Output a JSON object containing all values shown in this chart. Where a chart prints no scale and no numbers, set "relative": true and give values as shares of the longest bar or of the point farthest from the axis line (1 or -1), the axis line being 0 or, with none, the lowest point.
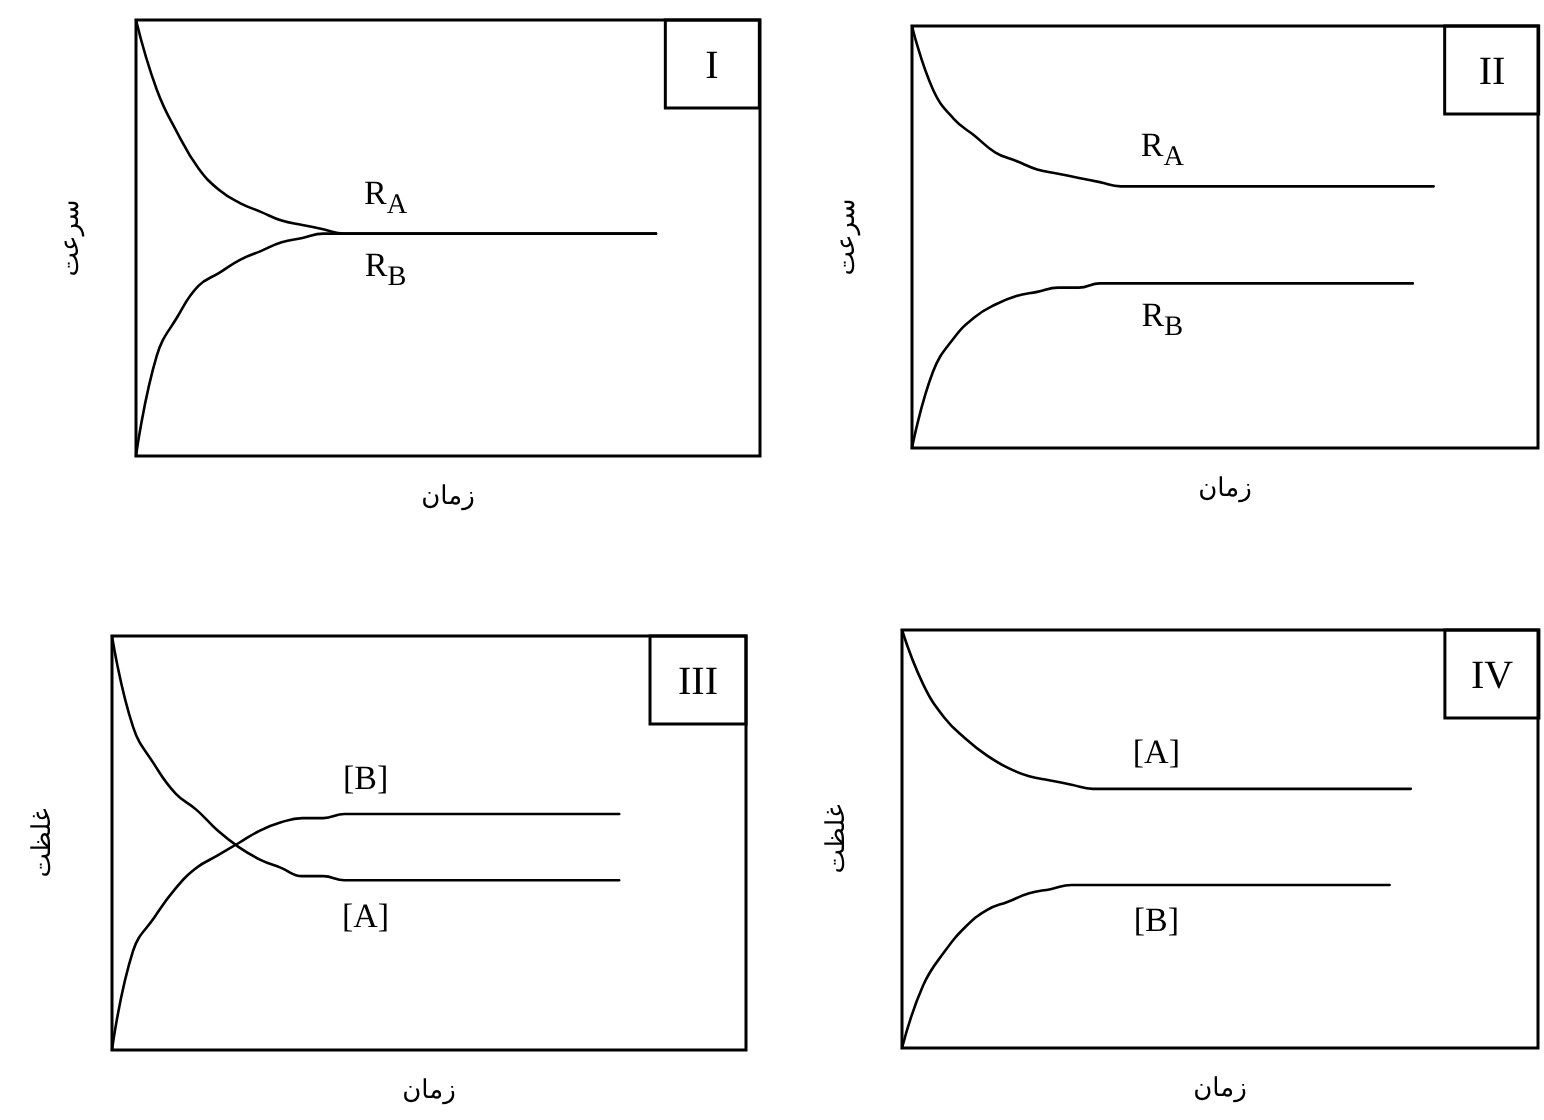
{
  "chart_data": [
    {
      "type": "line",
      "title": "I",
      "xlabel": "زمان",
      "ylabel": "سرعت",
      "relative": true,
      "marker": "none",
      "line_style": "solid",
      "categories": [
        null,
        null,
        null,
        null,
        null,
        null,
        null,
        null,
        null,
        null,
        null,
        null,
        null,
        null,
        null,
        null,
        null,
        null,
        null,
        null,
        null,
        null,
        null,
        null,
        null,
        null,
        null,
        null,
        null,
        null,
        null
      ],
      "series": [
        {
          "name": "R$_{A}$",
          "color": "#000000",
          "values": [
            1,
            0.84,
            0.74,
            0.66,
            0.61,
            0.58,
            0.56,
            0.54,
            0.53,
            0.52,
            0.51,
            0.51,
            0.51,
            0.51,
            0.51,
            0.51,
            0.51,
            0.51,
            0.51,
            0.51,
            0.51,
            0.51,
            0.51,
            0.51,
            0.51,
            0.51,
            null,
            null,
            null,
            null,
            null
          ]
        },
        {
          "name": "R$_{B}$",
          "color": "#000000",
          "values": [
            0,
            0.23,
            0.32,
            0.39,
            0.42,
            0.45,
            0.47,
            0.49,
            0.5,
            0.51,
            0.51,
            0.51,
            0.51,
            0.51,
            0.51,
            0.51,
            0.51,
            0.51,
            0.51,
            0.51,
            0.51,
            0.51,
            0.51,
            0.51,
            0.51,
            0.51,
            null,
            null,
            null,
            null,
            null
          ]
        }
      ]
    },
    {
      "type": "line",
      "title": "II",
      "xlabel": "زمان",
      "ylabel": "سرعت",
      "relative": true,
      "marker": "none",
      "line_style": "solid",
      "categories": [
        null,
        null,
        null,
        null,
        null,
        null,
        null,
        null,
        null,
        null,
        null,
        null,
        null,
        null,
        null,
        null,
        null,
        null,
        null,
        null,
        null,
        null,
        null,
        null,
        null,
        null,
        null,
        null,
        null,
        null,
        null
      ],
      "series": [
        {
          "name": "R$_{A}$",
          "color": "#000000",
          "values": [
            1,
            0.85,
            0.78,
            0.74,
            0.7,
            0.68,
            0.66,
            0.65,
            0.64,
            0.63,
            0.62,
            0.62,
            0.62,
            0.62,
            0.62,
            0.62,
            0.62,
            0.62,
            0.62,
            0.62,
            0.62,
            0.62,
            0.62,
            0.62,
            0.62,
            0.62,
            null,
            null,
            null,
            null,
            null
          ]
        },
        {
          "name": "R$_{B}$",
          "color": "#000000",
          "values": [
            0,
            0.18,
            0.26,
            0.31,
            0.34,
            0.36,
            0.37,
            0.38,
            0.38,
            0.39,
            0.39,
            0.39,
            0.39,
            0.39,
            0.39,
            0.39,
            0.39,
            0.39,
            0.39,
            0.39,
            0.39,
            0.39,
            0.39,
            0.39,
            0.39,
            null,
            null,
            null,
            null,
            null,
            null
          ]
        }
      ]
    },
    {
      "type": "line",
      "title": "III",
      "xlabel": "زمان",
      "ylabel": "غلظت",
      "relative": true,
      "marker": "none",
      "line_style": "solid",
      "categories": [
        null,
        null,
        null,
        null,
        null,
        null,
        null,
        null,
        null,
        null,
        null,
        null,
        null,
        null,
        null,
        null,
        null,
        null,
        null,
        null,
        null,
        null,
        null,
        null,
        null,
        null,
        null,
        null,
        null,
        null,
        null
      ],
      "series": [
        {
          "name": "[B]",
          "color": "#000000",
          "values": [
            0,
            0.24,
            0.32,
            0.39,
            0.44,
            0.47,
            0.5,
            0.53,
            0.55,
            0.56,
            0.56,
            0.57,
            0.57,
            0.57,
            0.57,
            0.57,
            0.57,
            0.57,
            0.57,
            0.57,
            0.57,
            0.57,
            0.57,
            0.57,
            0.57,
            null,
            null,
            null,
            null,
            null,
            null
          ]
        },
        {
          "name": "[A]",
          "color": "#000000",
          "values": [
            1,
            0.78,
            0.69,
            0.62,
            0.58,
            0.53,
            0.49,
            0.46,
            0.44,
            0.42,
            0.42,
            0.41,
            0.41,
            0.41,
            0.41,
            0.41,
            0.41,
            0.41,
            0.41,
            0.41,
            0.41,
            0.41,
            0.41,
            0.41,
            0.41,
            null,
            null,
            null,
            null,
            null,
            null
          ]
        }
      ]
    },
    {
      "type": "line",
      "title": "IV",
      "xlabel": "زمان",
      "ylabel": "غلظت",
      "relative": true,
      "marker": "none",
      "line_style": "solid",
      "categories": [
        null,
        null,
        null,
        null,
        null,
        null,
        null,
        null,
        null,
        null,
        null,
        null,
        null,
        null,
        null,
        null,
        null,
        null,
        null,
        null,
        null,
        null,
        null,
        null,
        null,
        null,
        null,
        null,
        null,
        null,
        null
      ],
      "series": [
        {
          "name": "[A]",
          "color": "#000000",
          "values": [
            1,
            0.87,
            0.79,
            0.74,
            0.7,
            0.67,
            0.65,
            0.64,
            0.63,
            0.62,
            0.62,
            0.62,
            0.62,
            0.62,
            0.62,
            0.62,
            0.62,
            0.62,
            0.62,
            0.62,
            0.62,
            0.62,
            0.62,
            0.62,
            0.62,
            null,
            null,
            null,
            null,
            null,
            null
          ]
        },
        {
          "name": "[B]",
          "color": "#000000",
          "values": [
            0,
            0.15,
            0.23,
            0.29,
            0.33,
            0.35,
            0.37,
            0.38,
            0.39,
            0.39,
            0.39,
            0.39,
            0.39,
            0.39,
            0.39,
            0.39,
            0.39,
            0.39,
            0.39,
            0.39,
            0.39,
            0.39,
            0.39,
            0.39,
            null,
            null,
            null,
            null,
            null,
            null,
            null
          ]
        }
      ]
    }
  ]
}
